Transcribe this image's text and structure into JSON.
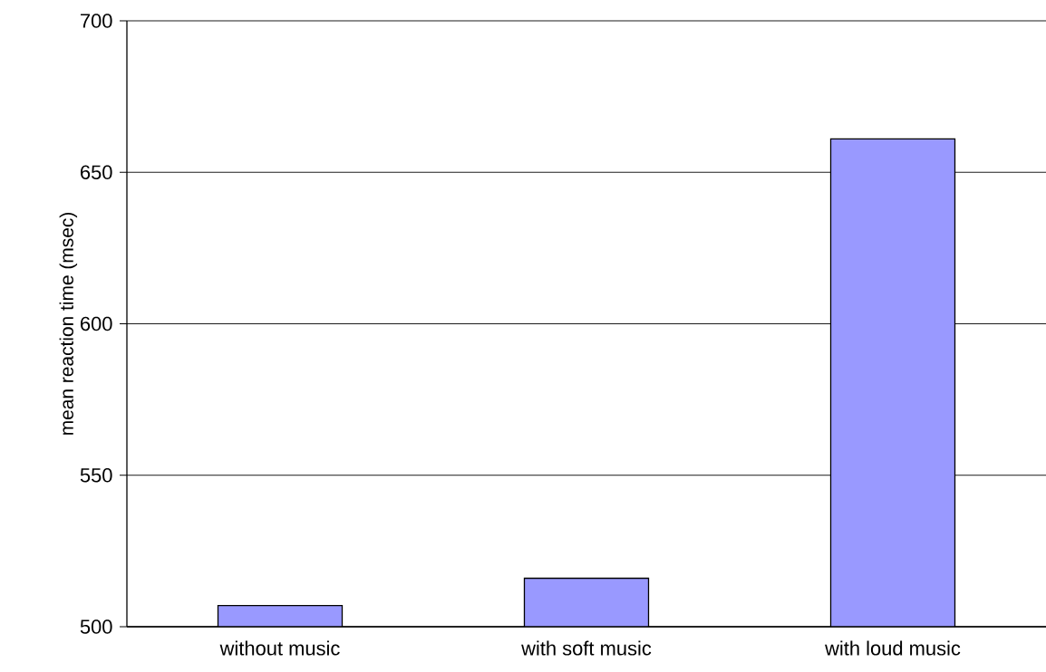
{
  "chart_data": {
    "type": "bar",
    "ylabel": "mean reaction time (msec)",
    "categories": [
      "without music",
      "with soft music",
      "with loud music"
    ],
    "values": [
      507,
      516,
      661
    ],
    "color": "#9999ff",
    "ylim": [
      500,
      700
    ],
    "yticks": [
      500,
      550,
      600,
      650,
      700
    ],
    "grid": "y"
  }
}
